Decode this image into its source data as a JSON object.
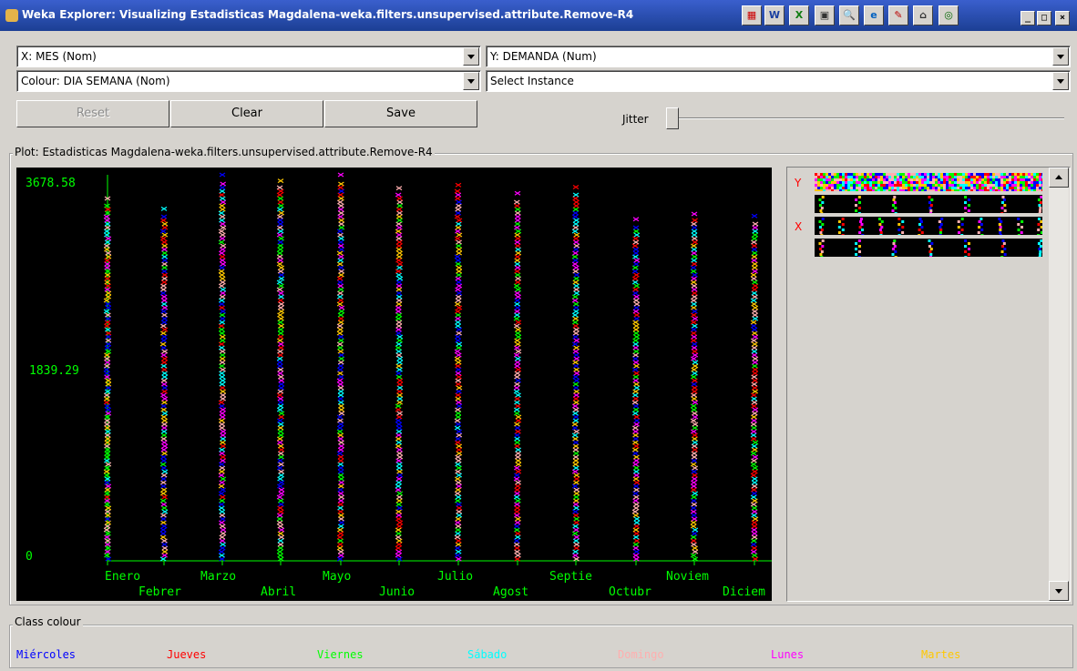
{
  "window": {
    "title": "Weka Explorer: Visualizing Estadisticas Magdalena-weka.filters.unsupervised.attribute.Remove-R4",
    "toolbar_icons": [
      "color-grid-icon",
      "word-icon",
      "excel-icon",
      "monitor-icon",
      "magnifier-icon",
      "ie-icon",
      "paint-icon",
      "cabinet-icon",
      "target-icon"
    ],
    "controls": {
      "minimize": "_",
      "maximize": "□",
      "close": "×"
    }
  },
  "selectors": {
    "x_axis": "X: MES (Nom)",
    "y_axis": "Y: DEMANDA (Num)",
    "colour": "Colour: DIA SEMANA (Nom)",
    "instance": "Select Instance"
  },
  "buttons": {
    "reset": "Reset",
    "clear": "Clear",
    "save": "Save"
  },
  "jitter": {
    "label": "Jitter",
    "value": 0
  },
  "plot": {
    "title": "Plot: Estadisticas Magdalena-weka.filters.unsupervised.attribute.Remove-R4",
    "y_ticks": [
      "3678.58",
      "1839.29",
      "0"
    ],
    "x_ticks_top": [
      "Enero",
      "Marzo",
      "Mayo",
      "Julio",
      "Septie",
      "Noviem"
    ],
    "x_ticks_bottom": [
      "Febrer",
      "Abril",
      "Junio",
      "Agost",
      "Octubr",
      "Diciem"
    ]
  },
  "chart_data": {
    "type": "scatter",
    "title": "",
    "xlabel": "MES",
    "ylabel": "DEMANDA",
    "categories": [
      "Enero",
      "Febrer",
      "Marzo",
      "Abril",
      "Mayo",
      "Junio",
      "Julio",
      "Agost",
      "Septie",
      "Octubr",
      "Noviem",
      "Diciem"
    ],
    "ylim": [
      0,
      3678.58
    ],
    "column_max": [
      3450,
      3350,
      3678.58,
      3620,
      3678.58,
      3550,
      3580,
      3500,
      3560,
      3250,
      3300,
      3280
    ],
    "series": [
      {
        "name": "Miércoles",
        "color": "#0000ff"
      },
      {
        "name": "Jueves",
        "color": "#ff0000"
      },
      {
        "name": "Viernes",
        "color": "#00ff00"
      },
      {
        "name": "Sábado",
        "color": "#00ffff"
      },
      {
        "name": "Domingo",
        "color": "#ffafaf"
      },
      {
        "name": "Lunes",
        "color": "#ff00ff"
      },
      {
        "name": "Martes",
        "color": "#ffc800"
      }
    ]
  },
  "matrix": {
    "y_label": "Y",
    "x_label": "X"
  },
  "class_colour": {
    "title": "Class colour",
    "items": [
      {
        "label": "Miércoles",
        "color": "#0000ff"
      },
      {
        "label": "Jueves",
        "color": "#ff0000"
      },
      {
        "label": "Viernes",
        "color": "#00ff00"
      },
      {
        "label": "Sábado",
        "color": "#00ffff"
      },
      {
        "label": "Domingo",
        "color": "#ffafaf"
      },
      {
        "label": "Lunes",
        "color": "#ff00ff"
      },
      {
        "label": "Martes",
        "color": "#ffc800"
      }
    ]
  }
}
